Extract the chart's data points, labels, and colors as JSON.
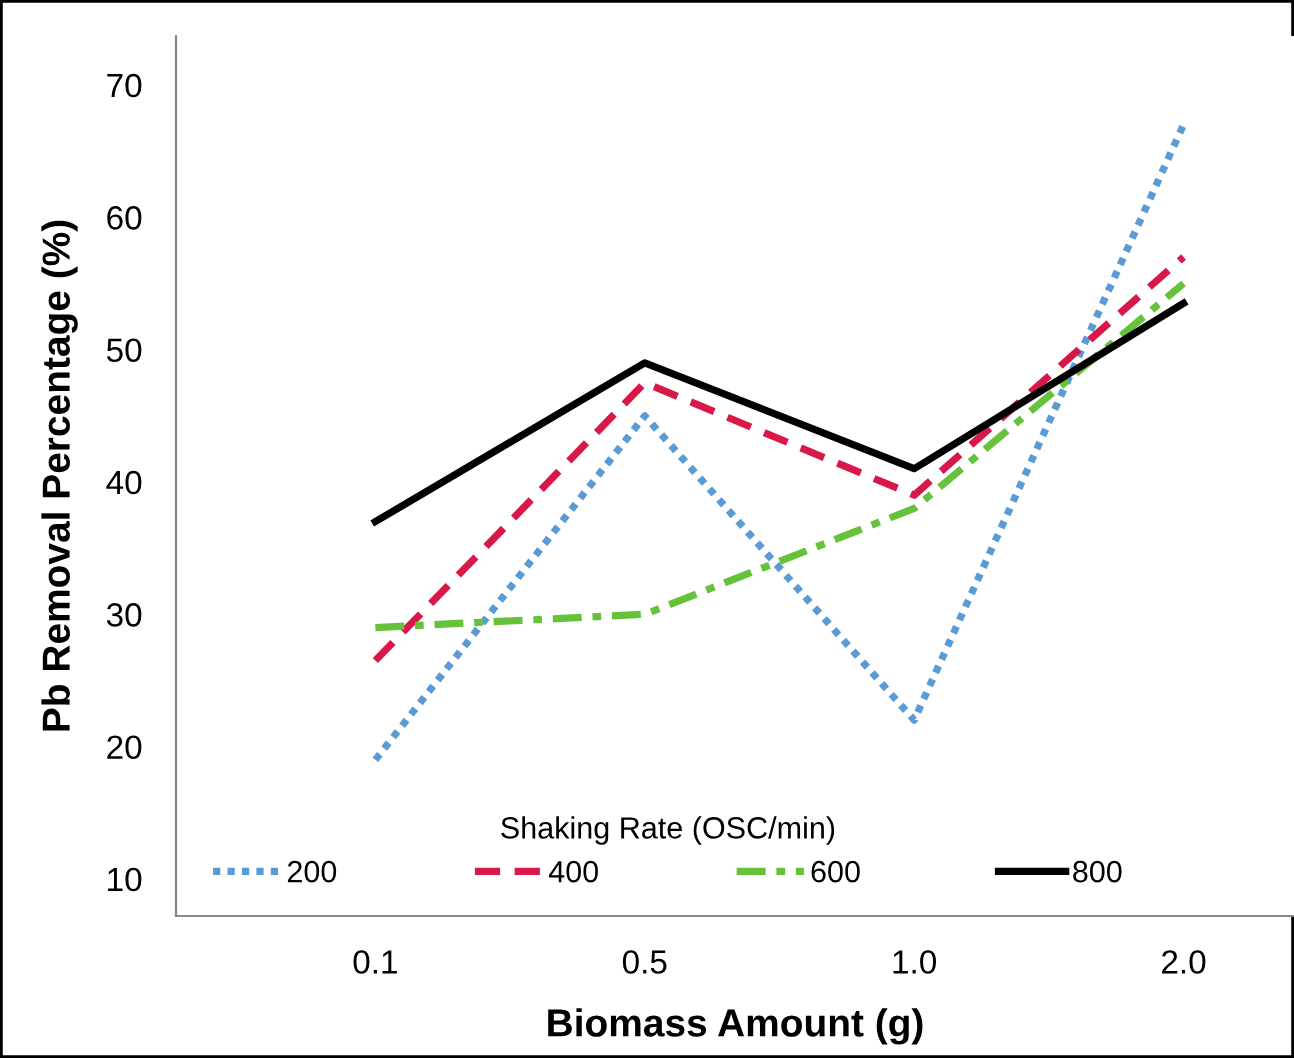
{
  "chart_data": {
    "type": "line",
    "xlabel": "Biomass Amount (g)",
    "ylabel": "Pb Removal Percentage (%)",
    "legend_title": "Shaking Rate (OSC/min)",
    "legend": "bottom",
    "grid": false,
    "marker": "none",
    "categories": [
      "0.1",
      "0.5",
      "1.0",
      "2.0"
    ],
    "ylim": [
      7.2,
      73.7
    ],
    "yticks": [
      10,
      20,
      30,
      40,
      50,
      60,
      70
    ],
    "series": [
      {
        "name": "200",
        "color": "#5b9bd5",
        "line_style": "dotted",
        "values": [
          19,
          45,
          22,
          67
        ]
      },
      {
        "name": "400",
        "color": "#d9184a",
        "line_style": "dashed",
        "values": [
          26.5,
          47.5,
          39,
          57
        ]
      },
      {
        "name": "600",
        "color": "#66c23a",
        "line_style": "dashdot",
        "values": [
          29,
          30,
          38,
          55
        ]
      },
      {
        "name": "800",
        "color": "#000000",
        "line_style": "solid",
        "values": [
          37,
          49,
          41,
          53.5
        ]
      }
    ]
  }
}
